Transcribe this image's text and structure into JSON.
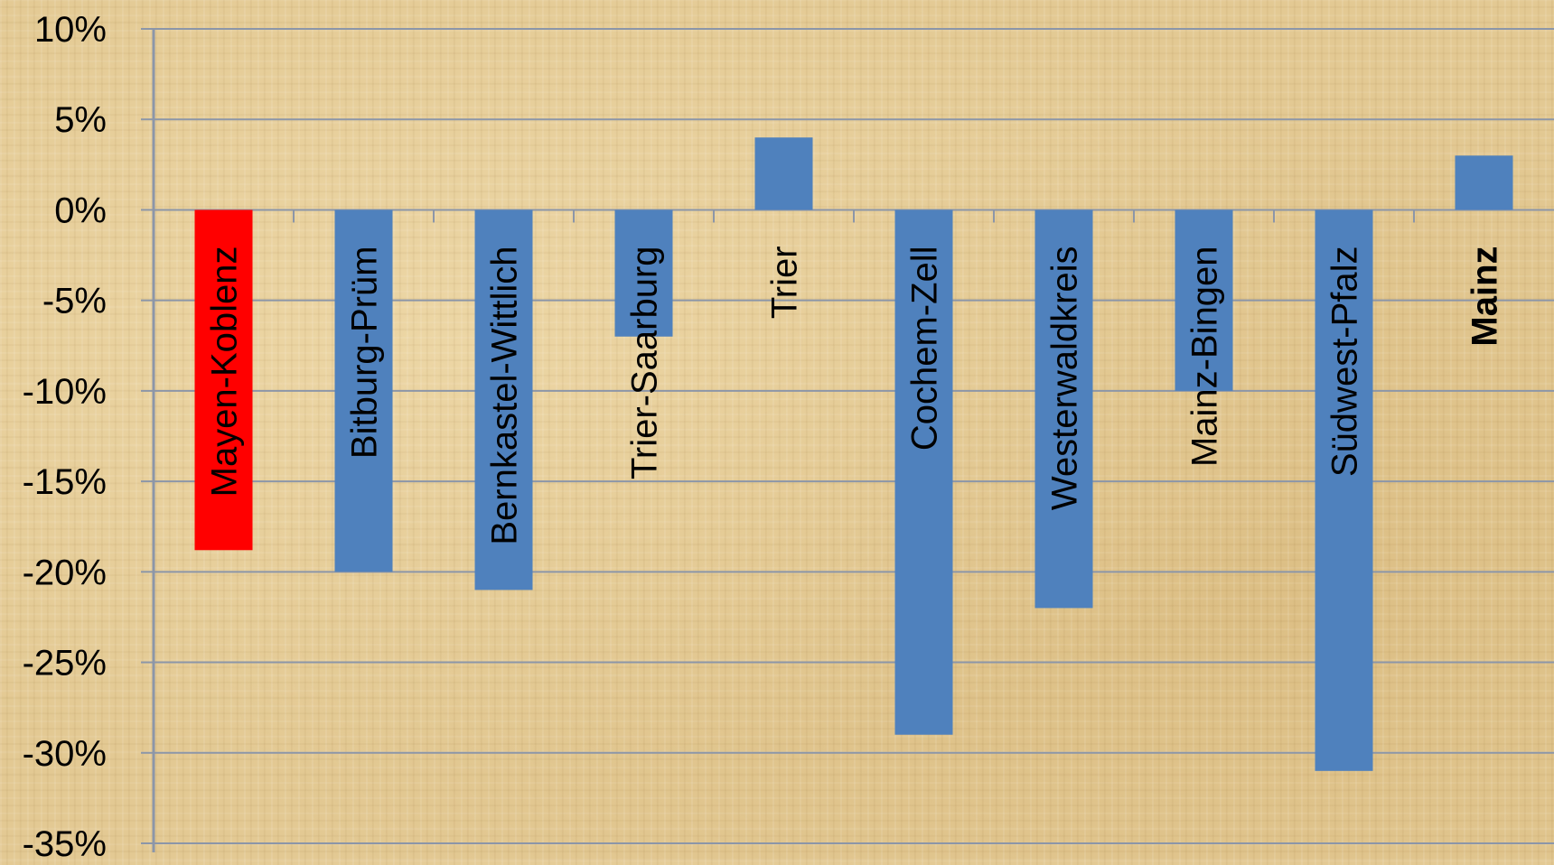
{
  "chart_data": {
    "type": "bar",
    "title": "",
    "xlabel": "",
    "ylabel": "",
    "categories": [
      "Mayen-Koblenz",
      "Bitburg-Prüm",
      "Bernkastel-Wittlich",
      "Trier-Saarburg",
      "Trier",
      "Cochem-Zell",
      "Westerwaldkreis",
      "Mainz-Bingen",
      "Südwest-Pfalz",
      "Mainz"
    ],
    "values": [
      -18.8,
      -20,
      -21,
      -7,
      4,
      -29,
      -22,
      -10,
      -31,
      3
    ],
    "ylim": [
      -35,
      10
    ],
    "yticks": [
      10,
      5,
      0,
      -5,
      -10,
      -15,
      -20,
      -25,
      -30,
      -35
    ],
    "ytick_labels": [
      "10%",
      "5%",
      "0%",
      "-5%",
      "-10%",
      "-15%",
      "-20%",
      "-25%",
      "-30%",
      "-35%"
    ],
    "grid": true,
    "legend": "none",
    "highlight_index": 0,
    "colors": {
      "default_bar": "#4f81bd",
      "highlight_bar": "#ff0000",
      "gridline": "#8c96a8",
      "text": "#000000"
    }
  }
}
